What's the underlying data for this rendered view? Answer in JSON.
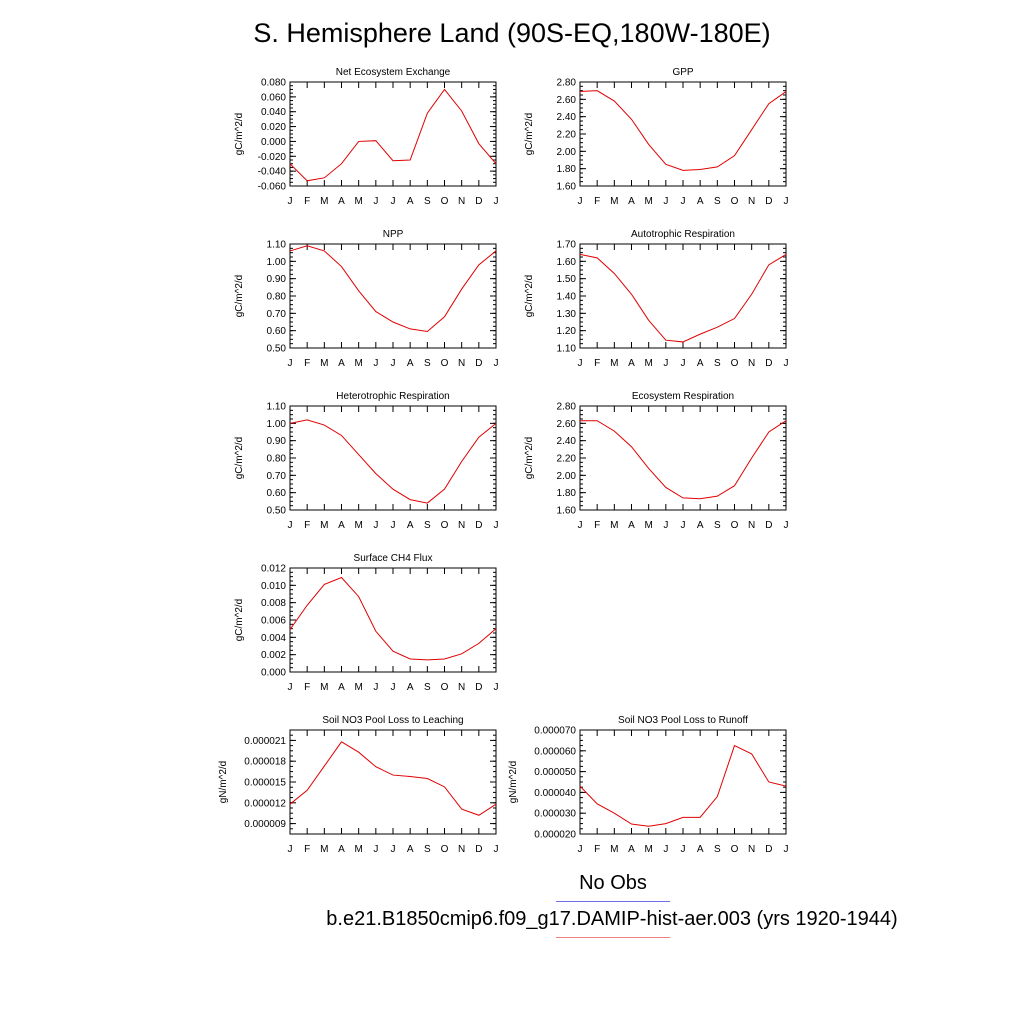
{
  "title": "S. Hemisphere Land (90S-EQ,180W-180E)",
  "legend": {
    "obs_label": "No Obs",
    "case_label": "b.e21.B1850cmip6.f09_g17.DAMIP-hist-aer.003 (yrs 1920-1944)",
    "obs_color": "#6f6fe8",
    "case_color": "#f08080"
  },
  "months": [
    "J",
    "F",
    "M",
    "A",
    "M",
    "J",
    "J",
    "A",
    "S",
    "O",
    "N",
    "D",
    "J"
  ],
  "line_color": "#e00000",
  "chart_data": [
    {
      "type": "line",
      "title": "Net Ecosystem Exchange",
      "ylabel": "gC/m^2/d",
      "ylim": [
        -0.06,
        0.08
      ],
      "yticks": [
        -0.06,
        -0.04,
        -0.02,
        0.0,
        0.02,
        0.04,
        0.06,
        0.08
      ],
      "ytick_labels": [
        "-0.060",
        "-0.040",
        "-0.020",
        "0.000",
        "0.020",
        "0.040",
        "0.060",
        "0.080"
      ],
      "values": [
        -0.03,
        -0.053,
        -0.049,
        -0.03,
        0.0,
        0.001,
        -0.026,
        -0.025,
        0.038,
        0.07,
        0.041,
        -0.003,
        -0.03
      ]
    },
    {
      "type": "line",
      "title": "GPP",
      "ylabel": "gC/m^2/d",
      "ylim": [
        1.6,
        2.8
      ],
      "yticks": [
        1.6,
        1.8,
        2.0,
        2.2,
        2.4,
        2.6,
        2.8
      ],
      "ytick_labels": [
        "1.60",
        "1.80",
        "2.00",
        "2.20",
        "2.40",
        "2.60",
        "2.80"
      ],
      "values": [
        2.69,
        2.7,
        2.58,
        2.37,
        2.08,
        1.85,
        1.78,
        1.79,
        1.82,
        1.95,
        2.25,
        2.55,
        2.69
      ]
    },
    {
      "type": "line",
      "title": "NPP",
      "ylabel": "gC/m^2/d",
      "ylim": [
        0.5,
        1.1
      ],
      "yticks": [
        0.5,
        0.6,
        0.7,
        0.8,
        0.9,
        1.0,
        1.1
      ],
      "ytick_labels": [
        "0.50",
        "0.60",
        "0.70",
        "0.80",
        "0.90",
        "1.00",
        "1.10"
      ],
      "values": [
        1.06,
        1.09,
        1.06,
        0.97,
        0.83,
        0.71,
        0.65,
        0.61,
        0.595,
        0.68,
        0.84,
        0.98,
        1.06
      ]
    },
    {
      "type": "line",
      "title": "Autotrophic Respiration",
      "ylabel": "gC/m^2/d",
      "ylim": [
        1.1,
        1.7
      ],
      "yticks": [
        1.1,
        1.2,
        1.3,
        1.4,
        1.5,
        1.6,
        1.7
      ],
      "ytick_labels": [
        "1.10",
        "1.20",
        "1.30",
        "1.40",
        "1.50",
        "1.60",
        "1.70"
      ],
      "values": [
        1.64,
        1.62,
        1.53,
        1.41,
        1.26,
        1.145,
        1.135,
        1.18,
        1.22,
        1.27,
        1.41,
        1.58,
        1.64
      ]
    },
    {
      "type": "line",
      "title": "Heterotrophic Respiration",
      "ylabel": "gC/m^2/d",
      "ylim": [
        0.5,
        1.1
      ],
      "yticks": [
        0.5,
        0.6,
        0.7,
        0.8,
        0.9,
        1.0,
        1.1
      ],
      "ytick_labels": [
        "0.50",
        "0.60",
        "0.70",
        "0.80",
        "0.90",
        "1.00",
        "1.10"
      ],
      "values": [
        1.0,
        1.02,
        0.99,
        0.93,
        0.82,
        0.71,
        0.62,
        0.56,
        0.54,
        0.62,
        0.78,
        0.92,
        1.0
      ]
    },
    {
      "type": "line",
      "title": "Ecosystem Respiration",
      "ylabel": "gC/m^2/d",
      "ylim": [
        1.6,
        2.8
      ],
      "yticks": [
        1.6,
        1.8,
        2.0,
        2.2,
        2.4,
        2.6,
        2.8
      ],
      "ytick_labels": [
        "1.60",
        "1.80",
        "2.00",
        "2.20",
        "2.40",
        "2.60",
        "2.80"
      ],
      "values": [
        2.63,
        2.63,
        2.51,
        2.33,
        2.08,
        1.86,
        1.74,
        1.73,
        1.76,
        1.88,
        2.2,
        2.5,
        2.63
      ]
    },
    {
      "type": "line",
      "title": "Surface CH4 Flux",
      "ylabel": "gC/m^2/d",
      "ylim": [
        0.0,
        0.012
      ],
      "yticks": [
        0.0,
        0.002,
        0.004,
        0.006,
        0.008,
        0.01,
        0.012
      ],
      "ytick_labels": [
        "0.000",
        "0.002",
        "0.004",
        "0.006",
        "0.008",
        "0.010",
        "0.012"
      ],
      "values": [
        0.0049,
        0.0077,
        0.0101,
        0.0109,
        0.0087,
        0.0047,
        0.0024,
        0.0015,
        0.0014,
        0.0015,
        0.0021,
        0.0033,
        0.005
      ]
    },
    {
      "type": "line",
      "title": "Soil NO3 Pool Loss to Leaching",
      "ylabel": "gN/m^2/d",
      "ylim": [
        7.5e-06,
        2.25e-05
      ],
      "yticks": [
        9e-06,
        1.2e-05,
        1.5e-05,
        1.8e-05,
        2.1e-05
      ],
      "ytick_labels": [
        "0.000009",
        "0.000012",
        "0.000015",
        "0.000018",
        "0.000021"
      ],
      "values": [
        1.18e-05,
        1.38e-05,
        1.73e-05,
        2.08e-05,
        1.93e-05,
        1.72e-05,
        1.6e-05,
        1.58e-05,
        1.55e-05,
        1.43e-05,
        1.11e-05,
        1.02e-05,
        1.18e-05
      ]
    },
    {
      "type": "line",
      "title": "Soil NO3 Pool Loss to Runoff",
      "ylabel": "gN/m^2/d",
      "ylim": [
        2e-05,
        7e-05
      ],
      "yticks": [
        2e-05,
        3e-05,
        4e-05,
        5e-05,
        6e-05,
        7e-05
      ],
      "ytick_labels": [
        "0.000020",
        "0.000030",
        "0.000040",
        "0.000050",
        "0.000060",
        "0.000070"
      ],
      "values": [
        4.3e-05,
        3.45e-05,
        3e-05,
        2.48e-05,
        2.37e-05,
        2.5e-05,
        2.8e-05,
        2.8e-05,
        3.8e-05,
        6.25e-05,
        5.85e-05,
        4.5e-05,
        4.3e-05
      ]
    }
  ]
}
